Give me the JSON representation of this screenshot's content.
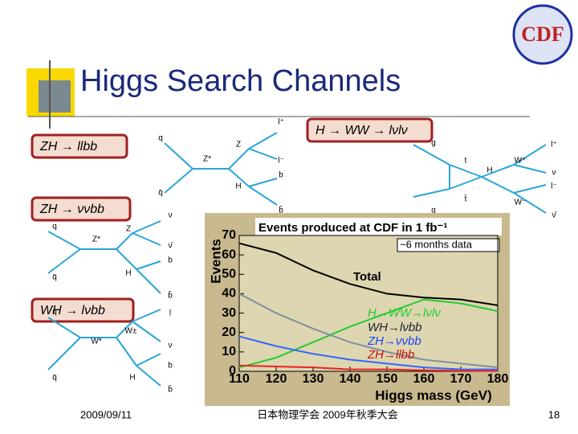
{
  "slide": {
    "title": "Higgs Search Channels",
    "logo": "CDF",
    "channels": [
      "ZH → llbb",
      "ZH → ννbb",
      "WH → lνbb",
      "H → WW → lνlν"
    ],
    "diagrams": [
      [
        "q",
        "q̄",
        "Z*",
        "Z",
        "H",
        "l⁺",
        "l⁻",
        "b",
        "b̄"
      ],
      [
        "q",
        "q̄",
        "Z*",
        "Z",
        "H",
        "ν",
        "ν̄",
        "b",
        "b̄"
      ],
      [
        "q",
        "q̄",
        "W*",
        "W±",
        "H",
        "l",
        "ν",
        "b",
        "b̄"
      ],
      [
        "g",
        "g",
        "t",
        "t̄",
        "H",
        "W⁺",
        "W⁻",
        "l⁺",
        "ν",
        "l⁻",
        "ν̄"
      ]
    ],
    "footer": {
      "date": "2009/09/11",
      "event": "日本物理学会 2009年秋季大会",
      "page": "18"
    }
  },
  "chart_data": {
    "type": "line",
    "title": "Events produced at CDF in 1 fb⁻¹",
    "annotation": "~6 months data",
    "x_label": "Higgs mass (GeV)",
    "y_label": "Events",
    "x": [
      110,
      120,
      130,
      140,
      150,
      160,
      170,
      180
    ],
    "series": [
      {
        "name": "Total",
        "color": "#000000",
        "values": [
          66,
          61,
          52,
          45,
          40,
          38,
          37,
          34
        ]
      },
      {
        "name": "H→WW→lνlν",
        "color": "#22cc33",
        "values": [
          2,
          7,
          15,
          23,
          30,
          37,
          35,
          31
        ]
      },
      {
        "name": "WH→lνbb",
        "color": "#8090a0",
        "values": [
          40,
          30,
          22,
          15,
          10,
          6,
          4,
          2
        ]
      },
      {
        "name": "ZH→ννbb",
        "color": "#3366ff",
        "values": [
          18,
          13,
          9,
          6,
          4,
          2,
          1,
          1
        ]
      },
      {
        "name": "ZH→llbb",
        "color": "#ee2222",
        "values": [
          3,
          2.5,
          2,
          1,
          1,
          0.5,
          0.3,
          0.2
        ]
      }
    ],
    "xlim": [
      110,
      180
    ],
    "xticks": [
      110,
      120,
      130,
      140,
      150,
      160,
      170,
      180
    ],
    "ylim": [
      0,
      70
    ],
    "yticks": [
      0,
      10,
      20,
      30,
      40,
      50,
      60,
      70
    ]
  }
}
